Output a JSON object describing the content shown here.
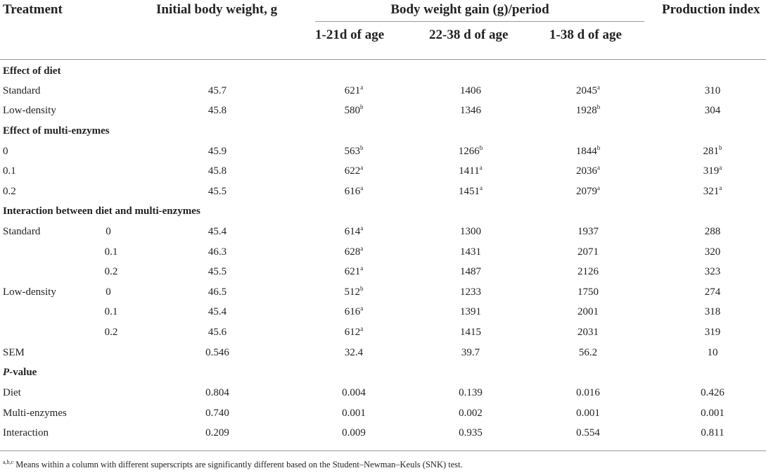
{
  "headers": {
    "treatment": "Treatment",
    "initial_bw": "Initial body weight, g",
    "bwg_group": "Body weight gain (g)/period",
    "period1": "1-21d of age",
    "period2": "22-38 d of age",
    "period3": "1-38 d of age",
    "production_index": "Production index"
  },
  "sections": {
    "diet": "Effect of diet",
    "enzymes": "Effect of multi-enzymes",
    "interaction": "Interaction between diet and multi-enzymes",
    "pvalue_italic": "P",
    "pvalue_rest": "-value"
  },
  "rows": {
    "standard": {
      "label": "Standard",
      "ibw": "45.7",
      "p1": "621",
      "p1s": "a",
      "p2": "1406",
      "p2s": "",
      "p3": "2045",
      "p3s": "a",
      "pi": "310",
      "pis": ""
    },
    "low_density": {
      "label": "Low-density",
      "ibw": "45.8",
      "p1": "580",
      "p1s": "b",
      "p2": "1346",
      "p2s": "",
      "p3": "1928",
      "p3s": "b",
      "pi": "304",
      "pis": ""
    },
    "enz_0": {
      "label": "0",
      "ibw": "45.9",
      "p1": "563",
      "p1s": "b",
      "p2": "1266",
      "p2s": "b",
      "p3": "1844",
      "p3s": "b",
      "pi": "281",
      "pis": "b"
    },
    "enz_01": {
      "label": "0.1",
      "ibw": "45.8",
      "p1": "622",
      "p1s": "a",
      "p2": "1411",
      "p2s": "a",
      "p3": "2036",
      "p3s": "a",
      "pi": "319",
      "pis": "a"
    },
    "enz_02": {
      "label": "0.2",
      "ibw": "45.5",
      "p1": "616",
      "p1s": "a",
      "p2": "1451",
      "p2s": "a",
      "p3": "2079",
      "p3s": "a",
      "pi": "321",
      "pis": "a"
    },
    "std_0": {
      "label": "Standard",
      "sub": "0",
      "ibw": "45.4",
      "p1": "614",
      "p1s": "a",
      "p2": "1300",
      "p3": "1937",
      "pi": "288"
    },
    "std_01": {
      "sub": "0.1",
      "ibw": "46.3",
      "p1": "628",
      "p1s": "a",
      "p2": "1431",
      "p3": "2071",
      "pi": "320"
    },
    "std_02": {
      "sub": "0.2",
      "ibw": "45.5",
      "p1": "621",
      "p1s": "a",
      "p2": "1487",
      "p3": "2126",
      "pi": "323"
    },
    "low_0": {
      "label": "Low-density",
      "sub": "0",
      "ibw": "46.5",
      "p1": "512",
      "p1s": "b",
      "p2": "1233",
      "p3": "1750",
      "pi": "274"
    },
    "low_01": {
      "sub": "0.1",
      "ibw": "45.4",
      "p1": "616",
      "p1s": "a",
      "p2": "1391",
      "p3": "2001",
      "pi": "318"
    },
    "low_02": {
      "sub": "0.2",
      "ibw": "45.6",
      "p1": "612",
      "p1s": "a",
      "p2": "1415",
      "p3": "2031",
      "pi": "319"
    },
    "sem": {
      "label": "SEM",
      "ibw": "0.546",
      "p1": "32.4",
      "p2": "39.7",
      "p3": "56.2",
      "pi": "10"
    },
    "pv_diet": {
      "label": "Diet",
      "ibw": "0.804",
      "p1": "0.004",
      "p2": "0.139",
      "p3": "0.016",
      "pi": "0.426"
    },
    "pv_enz": {
      "label": "Multi-enzymes",
      "ibw": "0.740",
      "p1": "0.001",
      "p2": "0.002",
      "p3": "0.001",
      "pi": "0.001"
    },
    "pv_int": {
      "label": "Interaction",
      "ibw": "0.209",
      "p1": "0.009",
      "p2": "0.935",
      "p3": "0.554",
      "pi": "0.811"
    }
  },
  "footnote": {
    "sup": "a,b,c",
    "text": "Means within a column with different superscripts are significantly different based on the Student–Newman–Keuls (SNK) test."
  }
}
